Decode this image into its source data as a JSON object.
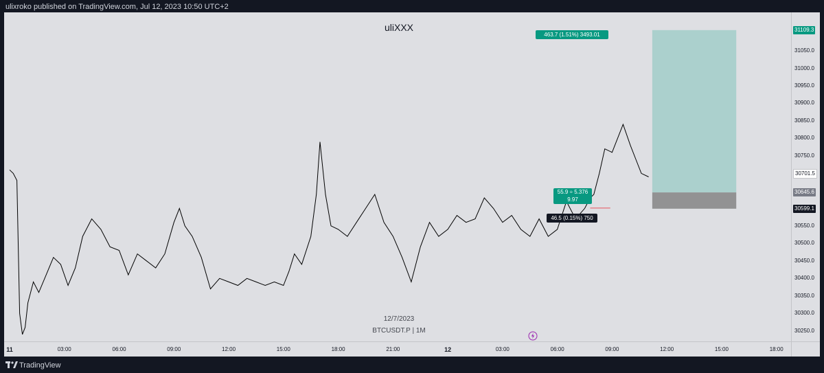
{
  "header": {
    "published_text": "ulixroko published on TradingView.com, Jul 12, 2023 10:50 UTC+2"
  },
  "footer": {
    "brand": "TradingView",
    "logo_icon": "tradingview-logo-icon"
  },
  "watermark": {
    "date": "12/7/2023",
    "symbol": "BTCUSDT.P | 1M"
  },
  "colors": {
    "background": "#dedfe3",
    "candle": "#000000",
    "profit_zone": "#a8cfcb",
    "loss_zone": "#8a8a8a",
    "label_green": "#089981",
    "label_dark": "#131722",
    "stop_line": "#e8505b"
  },
  "chart_data": {
    "type": "line",
    "title": "uliXXX",
    "symbol": "BTCUSDT.P",
    "interval": "1M",
    "grid": false,
    "ylim": [
      30220,
      31160
    ],
    "y_ticks": [
      "30250.0",
      "30300.0",
      "30350.0",
      "30400.0",
      "30450.0",
      "30500.0",
      "30550.0",
      "30600.0",
      "30650.0",
      "30700.0",
      "30750.0",
      "30800.0",
      "30850.0",
      "30900.0",
      "30950.0",
      "31000.0",
      "31050.0"
    ],
    "x_ticks": [
      {
        "label": "11",
        "hour": 0,
        "bold": true
      },
      {
        "label": "03:00",
        "hour": 3
      },
      {
        "label": "06:00",
        "hour": 6
      },
      {
        "label": "09:00",
        "hour": 9
      },
      {
        "label": "12:00",
        "hour": 12
      },
      {
        "label": "15:00",
        "hour": 15
      },
      {
        "label": "18:00",
        "hour": 18
      },
      {
        "label": "21:00",
        "hour": 21
      },
      {
        "label": "12",
        "hour": 24,
        "bold": true
      },
      {
        "label": "03:00",
        "hour": 27
      },
      {
        "label": "06:00",
        "hour": 30
      },
      {
        "label": "09:00",
        "hour": 33
      },
      {
        "label": "12:00",
        "hour": 36
      },
      {
        "label": "15:00",
        "hour": 39
      },
      {
        "label": "18:00",
        "hour": 42
      }
    ],
    "xlim_hours": [
      0,
      42.5
    ],
    "series": [
      {
        "x_hours": [
          0,
          0.2,
          0.4,
          0.55,
          0.7,
          0.85,
          1.0,
          1.3,
          1.6,
          2.0,
          2.4,
          2.8,
          3.2,
          3.6,
          4.0,
          4.5,
          5.0,
          5.5,
          6.0,
          6.5,
          7.0,
          7.5,
          8.0,
          8.5,
          9.0,
          9.3,
          9.6,
          10.0,
          10.5,
          11.0,
          11.5,
          12.0,
          12.5,
          13.0,
          13.5,
          14.0,
          14.5,
          15.0,
          15.3,
          15.6,
          16.0,
          16.5,
          16.8,
          17.0,
          17.3,
          17.6,
          18.0,
          18.5,
          19.0,
          19.5,
          20.0,
          20.5,
          21.0,
          21.5,
          22.0,
          22.5,
          23.0,
          23.5,
          24.0,
          24.5,
          25.0,
          25.5,
          26.0,
          26.5,
          27.0,
          27.5,
          28.0,
          28.5,
          29.0,
          29.5,
          30.0,
          30.5,
          31.0,
          31.5,
          31.8,
          32.0,
          32.3,
          32.6,
          33.0,
          33.3,
          33.6,
          34.0,
          34.3,
          34.6,
          35.0
        ],
        "values": [
          30710,
          30700,
          30680,
          30300,
          30240,
          30260,
          30330,
          30390,
          30360,
          30410,
          30460,
          30440,
          30380,
          30430,
          30520,
          30570,
          30540,
          30490,
          30480,
          30410,
          30470,
          30450,
          30430,
          30470,
          30560,
          30600,
          30550,
          30520,
          30460,
          30370,
          30400,
          30390,
          30380,
          30400,
          30390,
          30380,
          30390,
          30380,
          30420,
          30470,
          30440,
          30520,
          30640,
          30790,
          30640,
          30550,
          30540,
          30520,
          30560,
          30600,
          30640,
          30560,
          30520,
          30460,
          30390,
          30490,
          30560,
          30520,
          30540,
          30580,
          30560,
          30570,
          30630,
          30600,
          30560,
          30580,
          30540,
          30520,
          30570,
          30520,
          30540,
          30620,
          30570,
          30600,
          30630,
          30640,
          30700,
          30770,
          30760,
          30800,
          30840,
          30780,
          30740,
          30700,
          30690
        ]
      }
    ],
    "annotations": {
      "position": "long",
      "entry": 30645.6,
      "target": 31109.3,
      "stop": 30599.1,
      "last_price": 30701.5,
      "target_label": "463.7 (1.51%) 3493.01",
      "mid_label_line1": "55.9 ÷ 5.376",
      "mid_label_line2": "9.97",
      "stop_label": "46.5 (0.15%) 750",
      "target_price_label": "31109.3",
      "entry_price_label": "30645.6",
      "stop_price_label": "30599.1",
      "last_price_label": "30701.5",
      "box_start_hour": 35.2,
      "box_end_hour": 39.8
    }
  }
}
